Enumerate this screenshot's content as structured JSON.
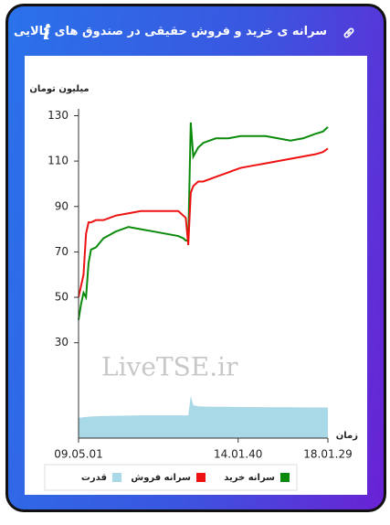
{
  "header": {
    "title": "سرانه ی خرید و فروش حقیقی در صندوق های کالایی"
  },
  "chart_data": {
    "type": "line",
    "y_label": "میلیون تومان",
    "x_label": "زمان",
    "watermark": "LiveTSE.ir",
    "x": [
      0,
      1,
      2,
      3,
      4,
      5,
      7,
      10,
      15,
      20,
      25,
      30,
      35,
      40,
      42,
      43,
      44,
      45,
      46,
      48,
      50,
      55,
      60,
      65,
      70,
      75,
      80,
      85,
      90,
      95,
      98,
      100
    ],
    "xlim": [
      0,
      100
    ],
    "xticks": [
      {
        "value": 0,
        "label": "09.05.01"
      },
      {
        "value": 64,
        "label": "14.01.40"
      },
      {
        "value": 100,
        "label": "18.01.29"
      }
    ],
    "ylim": [
      -12,
      133
    ],
    "yticks": [
      30,
      50,
      70,
      90,
      110,
      130
    ],
    "series": [
      {
        "name": "سرانه خرید",
        "color": "#0a8a0a",
        "kind": "line",
        "values": [
          40,
          47,
          52,
          50,
          65,
          71,
          72,
          76,
          79,
          81,
          80,
          79,
          78,
          77,
          76,
          75,
          75,
          127,
          112,
          116,
          118,
          120,
          120,
          121,
          121,
          121,
          120,
          119,
          120,
          122,
          123,
          125
        ]
      },
      {
        "name": "سرانه فروش",
        "color": "#ee1111",
        "kind": "line",
        "values": [
          50,
          55,
          60,
          78,
          83,
          83,
          84,
          84,
          86,
          87,
          88,
          88,
          88,
          88,
          86,
          85,
          73,
          96,
          99,
          101,
          101,
          103,
          105,
          107,
          108,
          109,
          110,
          111,
          112,
          113,
          114,
          115.5
        ]
      },
      {
        "name": "قدرت",
        "color": "#a9d8e6",
        "kind": "area",
        "values": [
          -3,
          -3,
          -2.8,
          -2.7,
          -2.6,
          -2.5,
          -2.4,
          -2.3,
          -2.2,
          -2.1,
          -2,
          -2,
          -2,
          -2,
          -2,
          -2,
          -2,
          6.5,
          2.5,
          2,
          1.9,
          1.8,
          1.8,
          1.7,
          1.7,
          1.6,
          1.6,
          1.6,
          1.5,
          1.5,
          1.5,
          1.5
        ]
      }
    ]
  }
}
